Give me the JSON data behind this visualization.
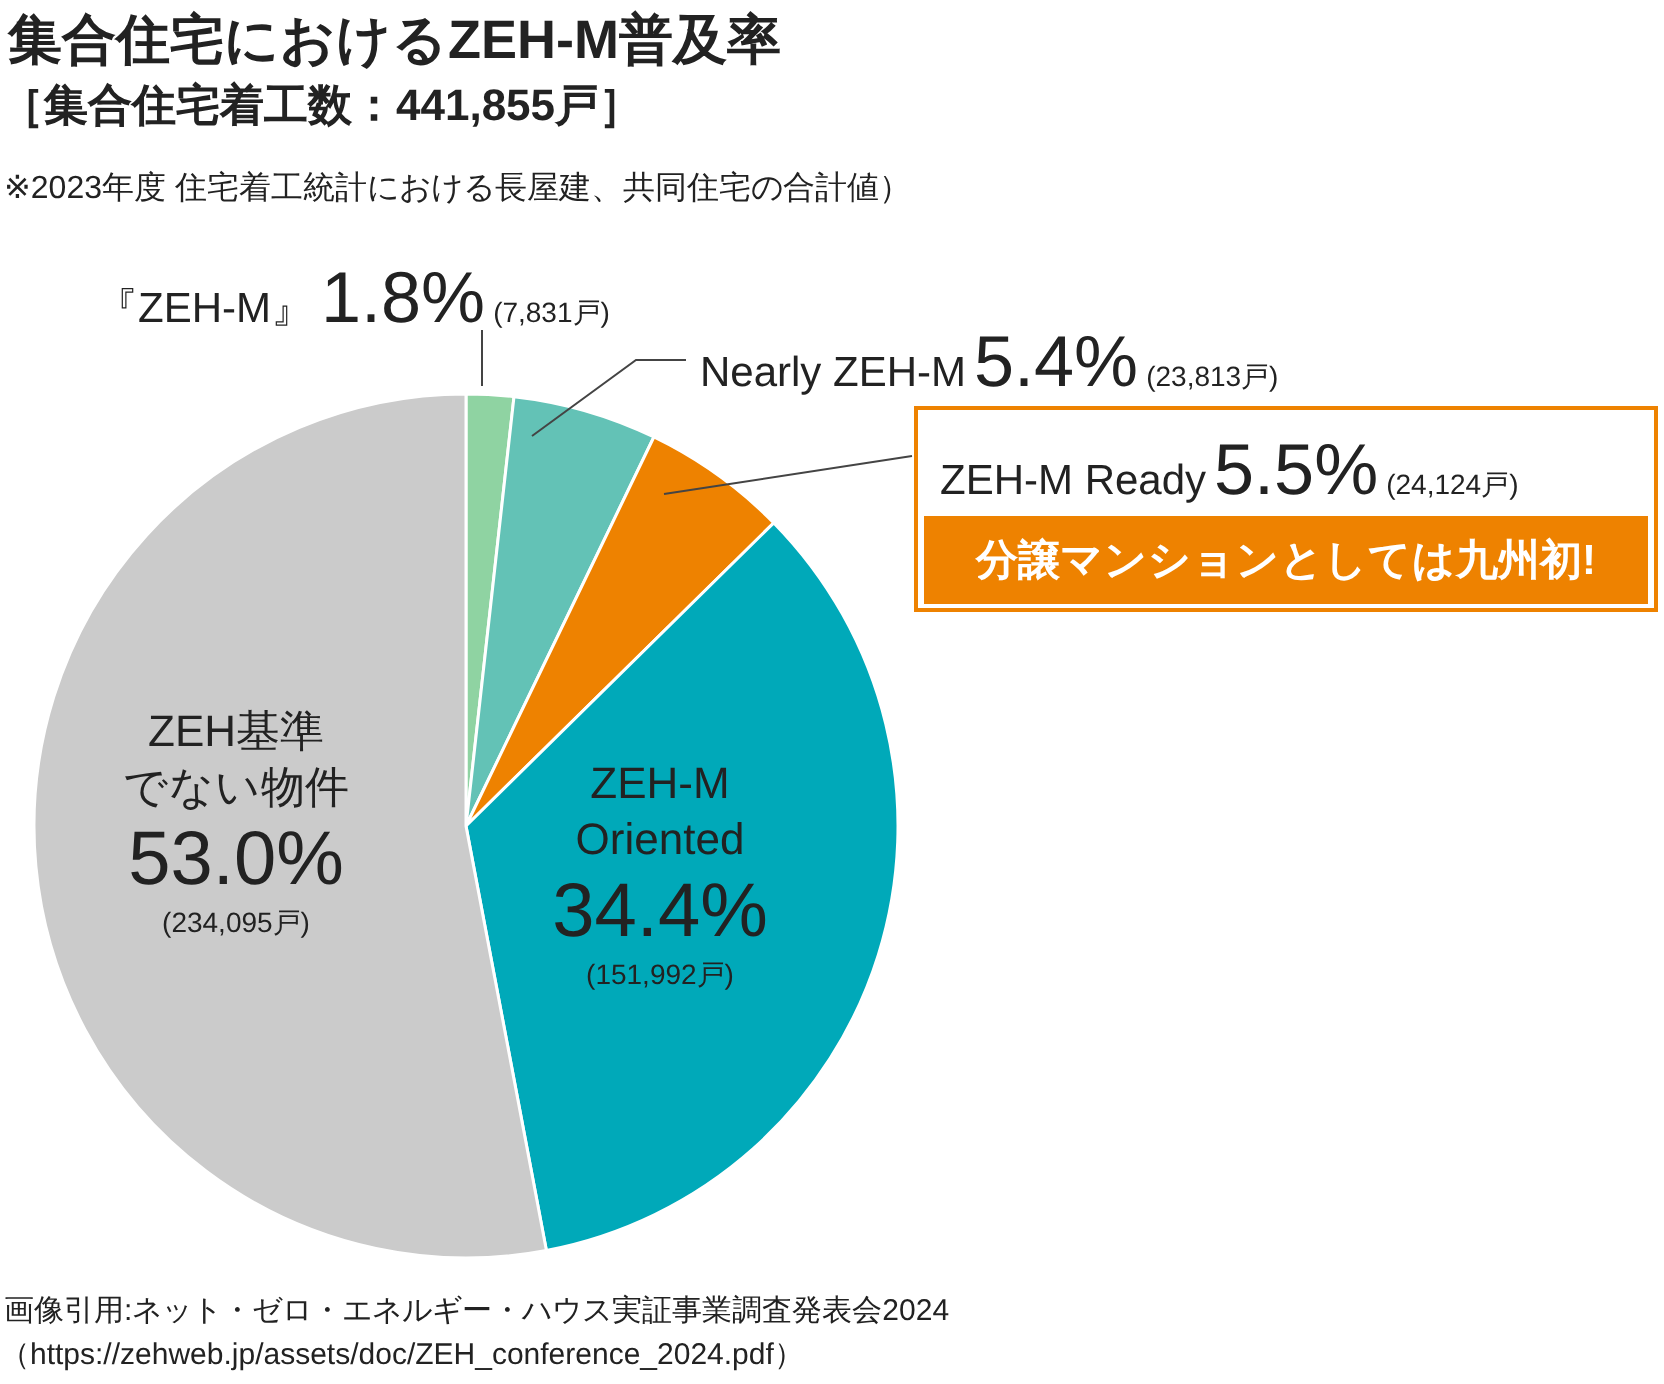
{
  "chart_data": {
    "type": "pie",
    "title": "集合住宅におけるZEH-M普及率",
    "subtitle": "［集合住宅着工数：441,855戸］",
    "categories": [
      "『ZEH-M』",
      "Nearly ZEH-M",
      "ZEH-M Ready",
      "ZEH-M Oriented",
      "ZEH基準でない物件"
    ],
    "values": [
      7831,
      23813,
      24124,
      151992,
      234095
    ],
    "colors": [
      "#8fd3a2",
      "#63c2b6",
      "#ee8200",
      "#00a9b9",
      "#cbcbcb"
    ],
    "value_labels": [
      "1.8%(7,831戸)",
      "5.4%(23,813戸)",
      "5.5%(24,124戸)",
      "34.4%(151,992戸)",
      "53.0%(234,095戸)"
    ],
    "annotations": [
      "※2023年度 住宅着工統計における長屋建、共同住宅の合計値）",
      "分譲マンションとしては九州初!",
      "画像引用:ネット・ゼロ・エネルギー・ハウス実証事業調査発表会2024",
      "（https://zehweb.jp/assets/doc/ZEH_conference_2024.pdf）"
    ],
    "legend": false
  }
}
